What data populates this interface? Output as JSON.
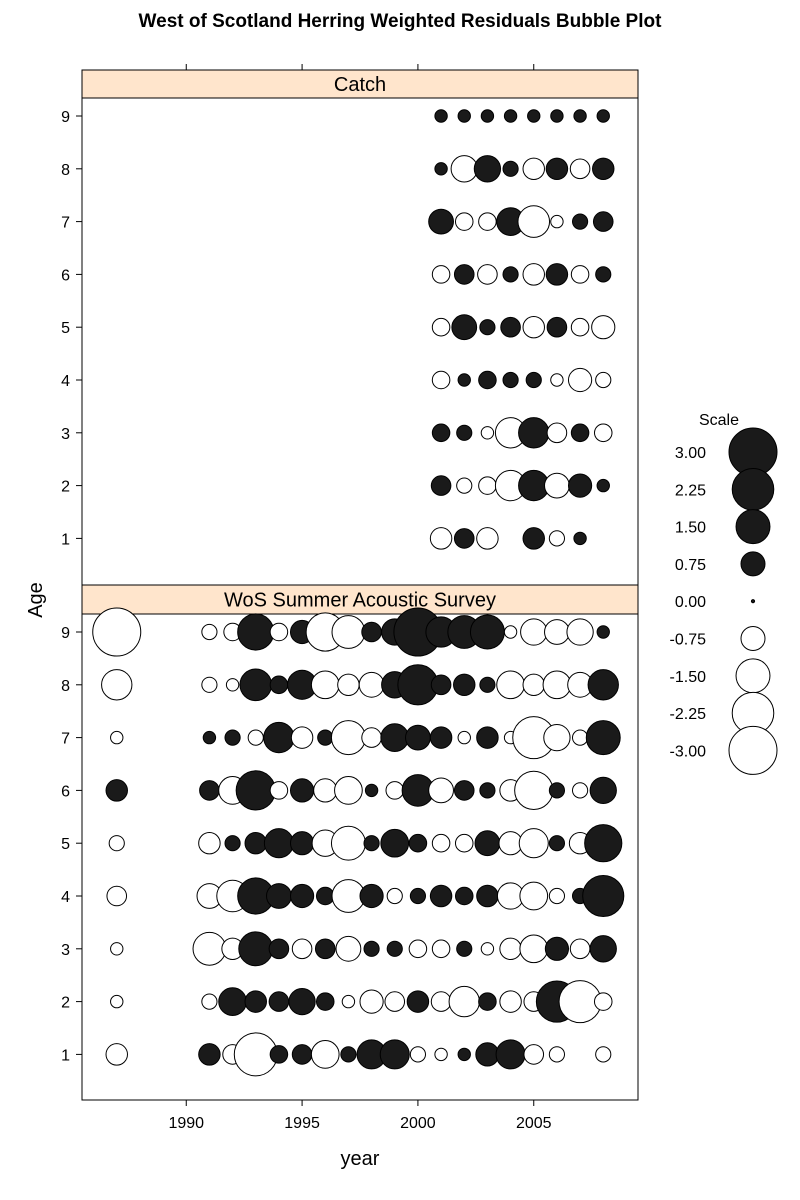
{
  "chart_data": {
    "type": "scatter",
    "title": "West of Scotland Herring Weighted Residuals Bubble Plot",
    "xlabel": "year",
    "ylabel": "Age",
    "xlim": [
      1985.5,
      2009.5
    ],
    "ylim": [
      0.3,
      9.7
    ],
    "x_ticks": [
      "1990",
      "1995",
      "2000",
      "2005"
    ],
    "y_ticks": [
      "1",
      "2",
      "3",
      "4",
      "5",
      "6",
      "7",
      "8",
      "9"
    ],
    "strip_color": "#ffe5cc",
    "fill_color": "#1a1a1a",
    "encoding": "bubble area proportional to |residual|; filled = positive, open = negative",
    "legend": {
      "title": "Scale",
      "placement": "right",
      "values": [
        3.0,
        2.25,
        1.5,
        0.75,
        0.0,
        -0.75,
        -1.5,
        -2.25,
        -3.0
      ],
      "labels": [
        "3.00",
        "2.25",
        "1.50",
        "0.75",
        "0.00",
        "-0.75",
        "-1.50",
        "-2.25",
        "-3.00"
      ]
    },
    "panels": [
      {
        "name": "Catch",
        "years": [
          2001,
          2002,
          2003,
          2004,
          2005,
          2006,
          2007,
          2008
        ],
        "ages": [
          9,
          8,
          7,
          6,
          5,
          4,
          3,
          2,
          1
        ],
        "residuals": [
          [
            0.2,
            0.2,
            0.2,
            0.2,
            0.2,
            0.2,
            0.2,
            0.2
          ],
          [
            0.2,
            -0.9,
            0.9,
            0.3,
            -0.6,
            0.6,
            -0.5,
            0.6
          ],
          [
            0.8,
            -0.4,
            -0.4,
            1.0,
            -1.3,
            -0.2,
            0.3,
            0.5
          ],
          [
            -0.4,
            0.5,
            -0.5,
            0.3,
            -0.6,
            0.6,
            -0.4,
            0.3
          ],
          [
            -0.4,
            0.8,
            0.3,
            0.5,
            -0.6,
            0.5,
            -0.4,
            -0.7
          ],
          [
            -0.4,
            0.2,
            0.4,
            0.3,
            0.3,
            -0.2,
            -0.7,
            -0.3
          ],
          [
            0.4,
            0.3,
            -0.2,
            -1.2,
            1.2,
            -0.5,
            0.4,
            -0.4
          ],
          [
            0.5,
            -0.3,
            -0.4,
            -1.2,
            1.2,
            -0.8,
            0.7,
            0.2
          ],
          [
            -0.6,
            0.5,
            -0.6,
            null,
            0.6,
            -0.3,
            0.2,
            null
          ]
        ]
      },
      {
        "name": "WoS Summer Acoustic Survey",
        "years": [
          1987,
          1991,
          1992,
          1993,
          1994,
          1995,
          1996,
          1997,
          1998,
          1999,
          2000,
          2001,
          2002,
          2003,
          2004,
          2005,
          2006,
          2007,
          2008
        ],
        "ages": [
          9,
          8,
          7,
          6,
          5,
          4,
          3,
          2,
          1
        ],
        "residuals": [
          [
            -3.0,
            -0.3,
            -0.4,
            1.7,
            -0.4,
            0.7,
            -1.9,
            -1.4,
            0.5,
            0.9,
            3.0,
            1.2,
            1.4,
            1.5,
            -0.2,
            -0.9,
            -0.8,
            -0.9,
            0.2
          ],
          [
            -1.2,
            -0.3,
            -0.2,
            1.3,
            0.4,
            1.1,
            -1.0,
            -0.6,
            -0.8,
            0.9,
            2.1,
            0.5,
            0.6,
            0.3,
            -1.0,
            -0.6,
            -1.0,
            -0.8,
            1.2
          ],
          [
            -0.2,
            0.2,
            0.3,
            -0.3,
            1.2,
            -0.6,
            0.3,
            -1.5,
            -0.5,
            1.0,
            0.8,
            0.6,
            -0.2,
            0.6,
            -0.2,
            -2.3,
            -0.9,
            -0.3,
            1.5
          ],
          [
            0.6,
            0.5,
            -1.0,
            2.0,
            -0.4,
            0.7,
            -0.7,
            -1.0,
            0.2,
            -0.4,
            1.3,
            -0.8,
            0.5,
            0.3,
            -0.6,
            -1.9,
            0.3,
            -0.3,
            0.9
          ],
          [
            -0.3,
            -0.6,
            0.3,
            0.6,
            1.1,
            0.7,
            -0.9,
            -1.5,
            0.3,
            1.0,
            0.4,
            -0.4,
            -0.4,
            0.8,
            -0.7,
            -1.1,
            0.3,
            -0.6,
            1.8
          ],
          [
            -0.5,
            -0.8,
            -1.3,
            1.7,
            0.8,
            0.7,
            0.4,
            -1.4,
            0.7,
            -0.3,
            0.3,
            0.6,
            0.4,
            0.6,
            -0.9,
            -1.0,
            -0.3,
            0.3,
            2.2
          ],
          [
            -0.2,
            -1.4,
            -0.6,
            1.5,
            0.5,
            -0.5,
            0.5,
            -0.8,
            0.3,
            0.3,
            -0.4,
            -0.4,
            0.3,
            -0.2,
            -0.6,
            -1.0,
            0.7,
            -0.5,
            0.9
          ],
          [
            -0.2,
            -0.3,
            1.0,
            0.6,
            0.5,
            0.9,
            0.4,
            -0.2,
            -0.7,
            -0.5,
            0.6,
            -0.5,
            -1.2,
            0.4,
            -0.6,
            -0.5,
            2.2,
            -2.3,
            -0.4
          ],
          [
            -0.6,
            0.6,
            -0.5,
            -2.4,
            0.4,
            0.5,
            -1.0,
            0.3,
            1.1,
            1.1,
            -0.3,
            -0.2,
            0.2,
            0.7,
            1.1,
            -0.5,
            -0.3,
            null,
            -0.3
          ]
        ]
      }
    ]
  }
}
